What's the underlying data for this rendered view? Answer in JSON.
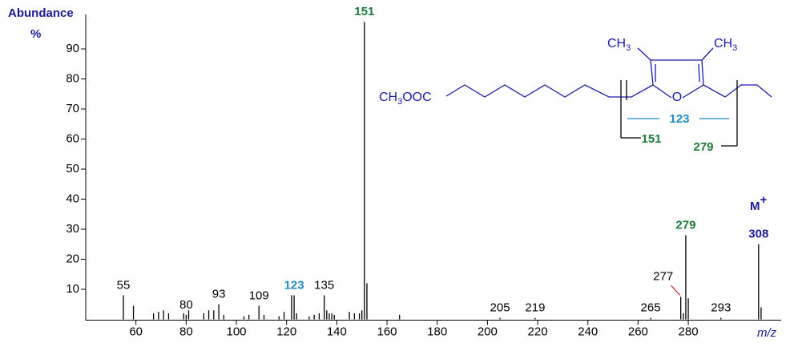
{
  "chart_data": {
    "type": "stick",
    "y_label": "Abundance",
    "y_unit": "%",
    "x_label": "m/z",
    "molecular_ion": {
      "text": "M",
      "charge": "+",
      "color": "#1a1a9a"
    },
    "color": "#000000",
    "xlim": [
      40,
      317
    ],
    "ylim": [
      0,
      100
    ],
    "xticks": [
      60,
      80,
      100,
      120,
      140,
      160,
      180,
      200,
      220,
      240,
      260,
      280
    ],
    "yticks": [
      10,
      20,
      30,
      40,
      50,
      60,
      70,
      80,
      90
    ],
    "peaks": [
      {
        "mz": 55,
        "abundance": 8,
        "label_color": "#000000"
      },
      {
        "mz": 59,
        "abundance": 4.5
      },
      {
        "mz": 67,
        "abundance": 2
      },
      {
        "mz": 69,
        "abundance": 2.5
      },
      {
        "mz": 71,
        "abundance": 3
      },
      {
        "mz": 73,
        "abundance": 2
      },
      {
        "mz": 79,
        "abundance": 2
      },
      {
        "mz": 80,
        "abundance": 1.5,
        "label_color": "#000000"
      },
      {
        "mz": 81,
        "abundance": 3
      },
      {
        "mz": 87,
        "abundance": 2
      },
      {
        "mz": 89,
        "abundance": 3
      },
      {
        "mz": 91,
        "abundance": 3
      },
      {
        "mz": 93,
        "abundance": 5,
        "label_color": "#000000"
      },
      {
        "mz": 95,
        "abundance": 1.5
      },
      {
        "mz": 103,
        "abundance": 1
      },
      {
        "mz": 105,
        "abundance": 1.5
      },
      {
        "mz": 109,
        "abundance": 4.5,
        "label_color": "#000000"
      },
      {
        "mz": 111,
        "abundance": 1.5
      },
      {
        "mz": 117,
        "abundance": 1
      },
      {
        "mz": 119,
        "abundance": 2.5
      },
      {
        "mz": 122,
        "abundance": 8
      },
      {
        "mz": 123,
        "abundance": 8,
        "label_color": "#1e8bc3"
      },
      {
        "mz": 124,
        "abundance": 2
      },
      {
        "mz": 129,
        "abundance": 1
      },
      {
        "mz": 131,
        "abundance": 1.5
      },
      {
        "mz": 133,
        "abundance": 2
      },
      {
        "mz": 135,
        "abundance": 8,
        "label_color": "#000000"
      },
      {
        "mz": 136,
        "abundance": 3
      },
      {
        "mz": 137,
        "abundance": 2
      },
      {
        "mz": 138,
        "abundance": 2
      },
      {
        "mz": 139,
        "abundance": 1.5
      },
      {
        "mz": 145,
        "abundance": 2.5
      },
      {
        "mz": 147,
        "abundance": 2
      },
      {
        "mz": 149,
        "abundance": 2
      },
      {
        "mz": 150,
        "abundance": 3
      },
      {
        "mz": 151,
        "abundance": 99,
        "label_color": "#1e7a3c"
      },
      {
        "mz": 152,
        "abundance": 12
      },
      {
        "mz": 165,
        "abundance": 1.5
      },
      {
        "mz": 205,
        "abundance": 0.5,
        "label_color": "#000000"
      },
      {
        "mz": 219,
        "abundance": 0.5,
        "label_color": "#000000"
      },
      {
        "mz": 265,
        "abundance": 0.5,
        "label_color": "#000000"
      },
      {
        "mz": 277,
        "abundance": 7.5,
        "label_color": "#000000",
        "leader_color": "#d00000"
      },
      {
        "mz": 278,
        "abundance": 2
      },
      {
        "mz": 279,
        "abundance": 28,
        "label_color": "#1e7a3c"
      },
      {
        "mz": 280,
        "abundance": 7
      },
      {
        "mz": 293,
        "abundance": 0.5,
        "label_color": "#000000"
      },
      {
        "mz": 308,
        "abundance": 25,
        "label_color": "#1a1a9a"
      },
      {
        "mz": 309,
        "abundance": 4
      }
    ]
  },
  "structure": {
    "methyl": "CH",
    "sub": "3",
    "ester_tail": "OOC",
    "oxygen": "O",
    "fragment_ring": "123",
    "fragment_left": "151",
    "fragment_right": "279"
  }
}
